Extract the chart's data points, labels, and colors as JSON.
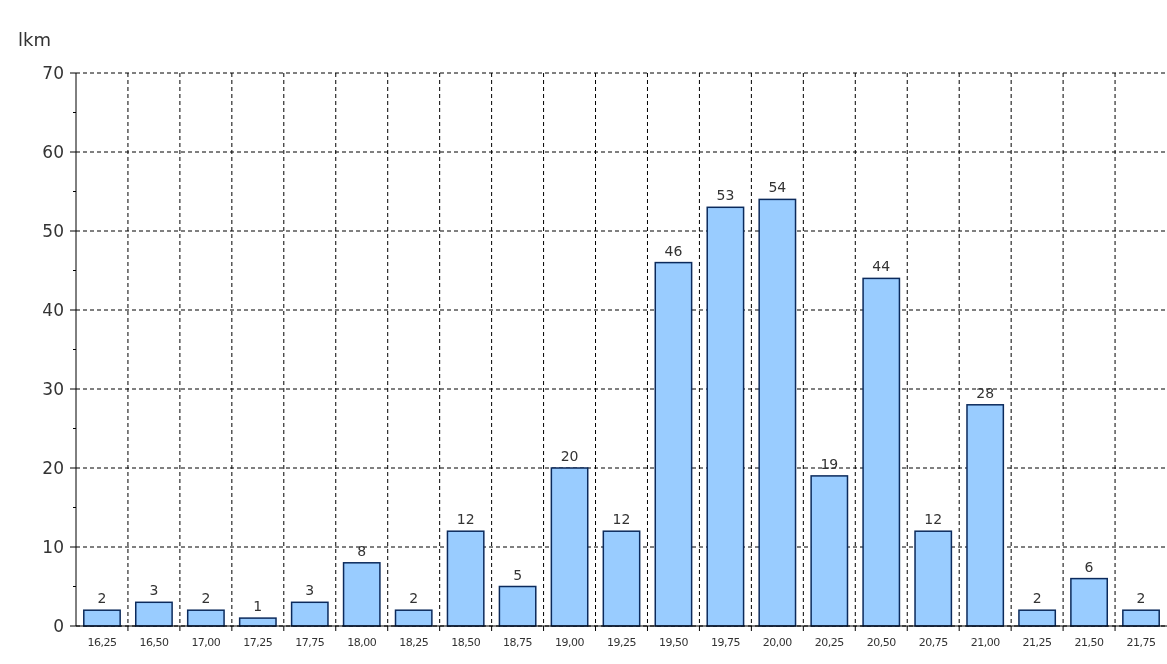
{
  "chart_data": {
    "type": "bar",
    "ylabel": "lkm",
    "categories": [
      "16,25",
      "16,50",
      "17,00",
      "17,25",
      "17,75",
      "18,00",
      "18,25",
      "18,50",
      "18,75",
      "19,00",
      "19,25",
      "19,50",
      "19,75",
      "20,00",
      "20,25",
      "20,50",
      "20,75",
      "21,00",
      "21,25",
      "21,50",
      "21,75"
    ],
    "values": [
      2,
      3,
      2,
      1,
      3,
      8,
      2,
      12,
      5,
      20,
      12,
      46,
      53,
      54,
      19,
      44,
      12,
      28,
      2,
      6,
      2
    ],
    "color": "#99ccff",
    "ylim": [
      0,
      70
    ],
    "yticks": [
      0,
      10,
      20,
      30,
      40,
      50,
      60,
      70
    ],
    "grid": true,
    "data_labels": true
  }
}
